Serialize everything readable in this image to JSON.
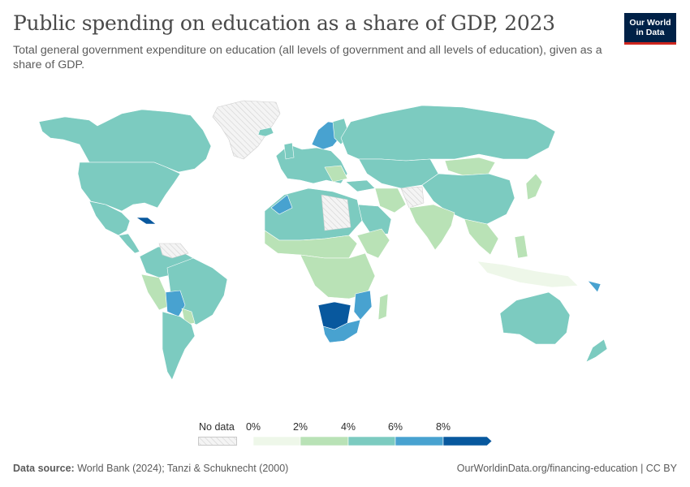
{
  "title": "Public spending on education as a share of GDP, 2023",
  "subtitle": "Total general government expenditure on education (all levels of government and all levels of education), given as a share of GDP.",
  "logo": {
    "line1": "Our World",
    "line2": "in Data"
  },
  "legend": {
    "no_data_label": "No data",
    "ticks": [
      "0%",
      "2%",
      "4%",
      "6%",
      "8%"
    ],
    "colors": [
      "#eef7e9",
      "#b9e2b6",
      "#7ccbc0",
      "#48a2d0",
      "#08589e"
    ],
    "no_data_color": "#e8e8e8"
  },
  "footer": {
    "source_label": "Data source:",
    "source_text": "World Bank (2024); Tanzi & Schuknecht (2000)",
    "url_text": "OurWorldinData.org/financing-education | CC BY"
  }
}
